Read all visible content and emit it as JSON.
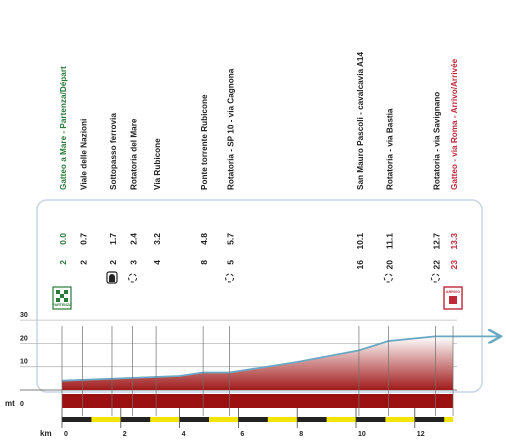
{
  "chart_data": {
    "type": "area",
    "title": "",
    "xlabel": "km",
    "ylabel": "mt",
    "x_ticks": [
      0,
      2,
      4,
      6,
      8,
      10,
      12
    ],
    "y_ticks": [
      0,
      10,
      20,
      30
    ],
    "xlim": [
      0,
      13.3
    ],
    "ylim": [
      0,
      30
    ],
    "series": [
      {
        "values": [
          {
            "x": 0,
            "y": 4
          },
          {
            "x": 2,
            "y": 5
          },
          {
            "x": 4,
            "y": 6
          },
          {
            "x": 4.8,
            "y": 7.5
          },
          {
            "x": 5.7,
            "y": 7.5
          },
          {
            "x": 8,
            "y": 12
          },
          {
            "x": 10.1,
            "y": 17
          },
          {
            "x": 11.1,
            "y": 21
          },
          {
            "x": 12.7,
            "y": 23
          },
          {
            "x": 13.3,
            "y": 23
          },
          {
            "x": 15,
            "y": 23
          }
        ]
      }
    ],
    "waypoints": [
      {
        "name": "Gatteo a Mare - Partenza/Départ",
        "km": "0.0",
        "remaining": "2",
        "x": 0,
        "color": "#2a7a3a",
        "marker": "partenza-flag-icon"
      },
      {
        "name": "Viale delle Nazioni",
        "km": "0.7",
        "remaining": "2",
        "x": 0.7,
        "color": "#222222",
        "marker": ""
      },
      {
        "name": "Sottopasso ferrovia",
        "km": "1.7",
        "remaining": "2",
        "x": 1.7,
        "color": "#222222",
        "marker": "tunnel-icon"
      },
      {
        "name": "Rotatoria del Mare",
        "km": "2.4",
        "remaining": "3",
        "x": 2.4,
        "color": "#222222",
        "marker": "roundabout-icon"
      },
      {
        "name": "Via Rubicone",
        "km": "3.2",
        "remaining": "4",
        "x": 3.2,
        "color": "#222222",
        "marker": ""
      },
      {
        "name": "Ponte torrente Rubicone",
        "km": "4.8",
        "remaining": "8",
        "x": 4.8,
        "color": "#222222",
        "marker": ""
      },
      {
        "name": "Rotatoria - SP 10 - via Cagnona",
        "km": "5.7",
        "remaining": "5",
        "x": 5.7,
        "color": "#222222",
        "marker": "roundabout-icon"
      },
      {
        "name": "San Mauro Pascoli - cavalcavia A14",
        "km": "10.1",
        "remaining": "16",
        "x": 10.1,
        "color": "#222222",
        "marker": ""
      },
      {
        "name": "Rotatoria - via Bastia",
        "km": "11.1",
        "remaining": "20",
        "x": 11.1,
        "color": "#222222",
        "marker": "roundabout-icon"
      },
      {
        "name": "Rotatoria - via Savignano",
        "km": "12.7",
        "remaining": "22",
        "x": 12.7,
        "color": "#222222",
        "marker": "roundabout-icon"
      },
      {
        "name": "Gatteo - via Roma - Arrivo/Arrivée",
        "km": "13.3",
        "remaining": "23",
        "x": 13.3,
        "color": "#c0283a",
        "marker": "arrivo-flag-icon"
      }
    ],
    "flag_labels": {
      "start": "PARTENZA",
      "finish": "ARRIVO"
    },
    "colors": {
      "profile_line": "#6aa8c4",
      "fill_top": "#ffffff",
      "fill_bottom": "#a01a1a",
      "ground": "#9b1111",
      "finish": "#c0283a",
      "start": "#2a7a3a",
      "box_border": "#c9d6e6"
    },
    "grid": true
  }
}
